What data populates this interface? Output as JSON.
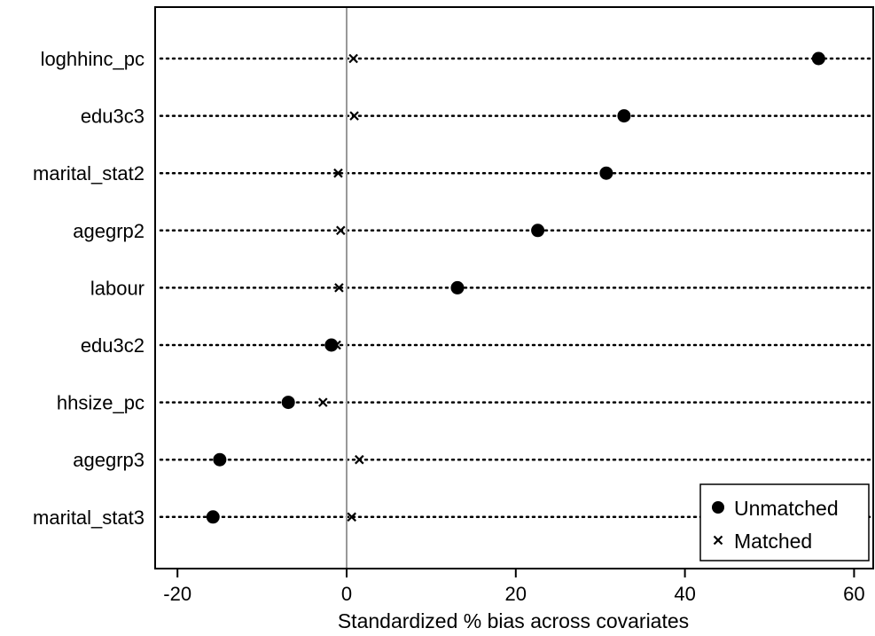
{
  "chart_data": {
    "type": "scatter",
    "xlabel": "Standardized % bias across covariates",
    "xlim": [
      -23,
      62
    ],
    "xticks": [
      -20,
      0,
      20,
      40,
      60
    ],
    "categories": [
      "loghhinc_pc",
      "edu3c3",
      "marital_stat2",
      "agegrp2",
      "labour",
      "edu3c2",
      "hhsize_pc",
      "agegrp3",
      "marital_stat3"
    ],
    "series": [
      {
        "name": "Unmatched",
        "marker": "circle",
        "values": [
          55.8,
          32.8,
          30.7,
          22.6,
          13.1,
          -1.8,
          -6.9,
          -15.0,
          -15.8
        ]
      },
      {
        "name": "Matched",
        "marker": "x",
        "values": [
          0.8,
          0.9,
          -1.0,
          -0.7,
          -0.9,
          -1.2,
          -2.8,
          1.5,
          0.6
        ]
      }
    ],
    "reference_line": 0,
    "legend_position": "bottom-right",
    "grid": false,
    "colors": {
      "marker": "#000000",
      "reference_line": "#999999",
      "dots": "#000000"
    }
  }
}
